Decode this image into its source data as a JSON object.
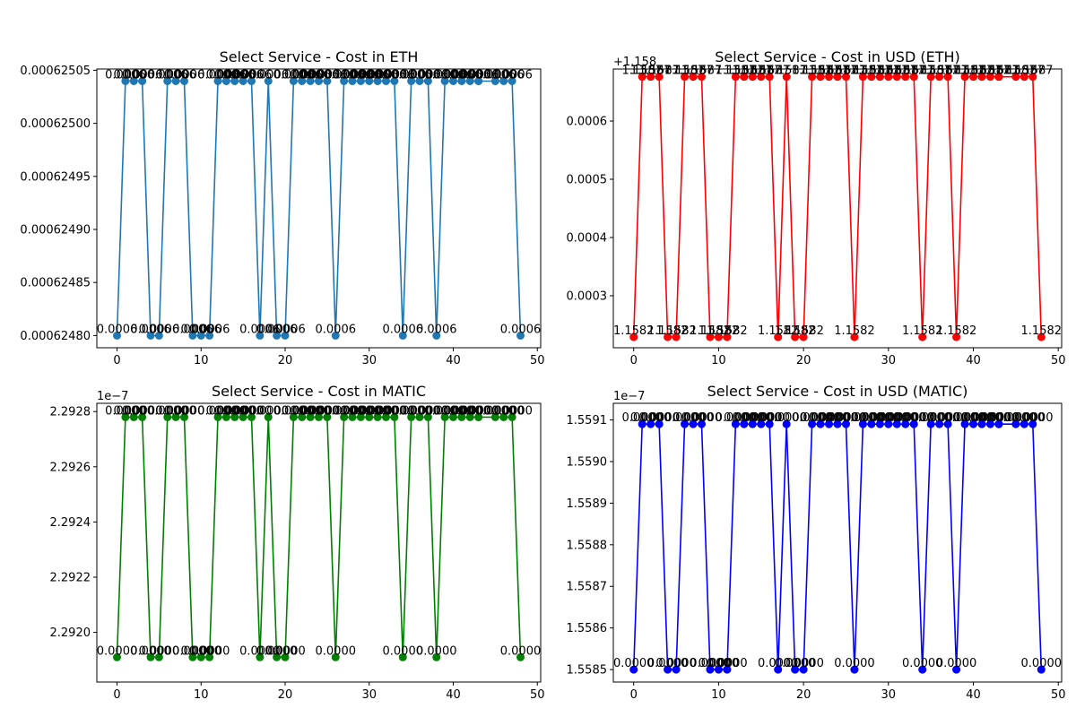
{
  "chart_data": [
    {
      "type": "line",
      "title": "Select Service - Cost in ETH",
      "color": "#1f77b4",
      "offset_text": "",
      "xlim": [
        -2.4,
        50.4
      ],
      "ylim": [
        0.0006247885,
        0.0006250512
      ],
      "xticks": [
        0,
        10,
        20,
        30,
        40,
        50
      ],
      "xtick_labels": [
        "0",
        "10",
        "20",
        "30",
        "40",
        "50"
      ],
      "yticks": [
        0.0006248,
        0.00062485,
        0.0006249,
        0.00062495,
        0.000625,
        0.00062505
      ],
      "ytick_labels": [
        "0.00062480",
        "0.00062485",
        "0.00062490",
        "0.00062495",
        "0.00062500",
        "0.00062505"
      ],
      "x": [
        0,
        1,
        2,
        3,
        4,
        5,
        6,
        7,
        8,
        9,
        10,
        11,
        12,
        13,
        14,
        15,
        16,
        17,
        18,
        19,
        20,
        21,
        22,
        23,
        24,
        25,
        26,
        27,
        28,
        29,
        30,
        31,
        32,
        33,
        34,
        35,
        36,
        37,
        38,
        39,
        40,
        41,
        42,
        43,
        43,
        45,
        46,
        47,
        48
      ],
      "y": [
        0.0006248,
        0.0006250398,
        0.0006250398,
        0.0006250398,
        0.0006248,
        0.0006248,
        0.0006250398,
        0.0006250398,
        0.0006250398,
        0.0006248,
        0.0006248,
        0.0006248,
        0.0006250398,
        0.0006250398,
        0.0006250398,
        0.0006250398,
        0.0006250398,
        0.0006248,
        0.0006250398,
        0.0006248,
        0.0006248,
        0.0006250398,
        0.0006250398,
        0.0006250398,
        0.0006250398,
        0.0006250398,
        0.0006248,
        0.0006250398,
        0.0006250398,
        0.0006250398,
        0.0006250398,
        0.0006250398,
        0.0006250398,
        0.0006250398,
        0.0006248,
        0.0006250398,
        0.0006250398,
        0.0006250398,
        0.0006248,
        0.0006250398,
        0.0006250398,
        0.0006250398,
        0.0006250398,
        0.0006250398,
        0.0006250398,
        0.0006250398,
        0.0006250398,
        0.0006250398,
        0.0006248
      ],
      "labels": [
        "0.0006",
        "0.0006",
        "0.0006",
        "0.0006",
        "0.0006",
        "0.0006",
        "0.0006",
        "0.0006",
        "0.0006",
        "0.0006",
        "0.0006",
        "0.0006",
        "0.0006",
        "0.0006",
        "0.0006",
        "0.0006",
        "0.0006",
        "0.0006",
        "0.0006",
        "0.0006",
        "0.0006",
        "0.0006",
        "0.0006",
        "0.0006",
        "0.0006",
        "0.0006",
        "0.0006",
        "0.0006",
        "0.0006",
        "0.0006",
        "0.0006",
        "0.0006",
        "0.0006",
        "0.0006",
        "0.0006",
        "0.0006",
        "0.0006",
        "0.0006",
        "0.0006",
        "0.0006",
        "0.0006",
        "0.0006",
        "0.0006",
        "0.0006",
        "0.0006",
        "0.0006",
        "0.0006",
        "0.0006",
        "0.0006"
      ]
    },
    {
      "type": "line",
      "title": "Select Service - Cost in USD (ETH)",
      "color": "#ff0000",
      "offset_text": "+1.158",
      "xlim": [
        -2.4,
        50.4
      ],
      "ylim": [
        0.0002107,
        0.0006893
      ],
      "xticks": [
        0,
        10,
        20,
        30,
        40,
        50
      ],
      "xtick_labels": [
        "0",
        "10",
        "20",
        "30",
        "40",
        "50"
      ],
      "yticks": [
        0.0003,
        0.0004,
        0.0005,
        0.0006
      ],
      "ytick_labels": [
        "0.0003",
        "0.0004",
        "0.0005",
        "0.0006"
      ],
      "x": [
        0,
        1,
        2,
        3,
        4,
        5,
        6,
        7,
        8,
        9,
        10,
        11,
        12,
        13,
        14,
        15,
        16,
        17,
        18,
        19,
        20,
        21,
        22,
        23,
        24,
        25,
        26,
        27,
        28,
        29,
        30,
        31,
        32,
        33,
        34,
        35,
        36,
        37,
        38,
        39,
        40,
        41,
        42,
        43,
        43,
        45,
        46,
        47,
        48
      ],
      "y": [
        0.000229,
        0.000676,
        0.000676,
        0.000676,
        0.000229,
        0.000229,
        0.000676,
        0.000676,
        0.000676,
        0.000229,
        0.000229,
        0.000229,
        0.000676,
        0.000676,
        0.000676,
        0.000676,
        0.000676,
        0.000229,
        0.000676,
        0.000229,
        0.000229,
        0.000676,
        0.000676,
        0.000676,
        0.000676,
        0.000676,
        0.000229,
        0.000676,
        0.000676,
        0.000676,
        0.000676,
        0.000676,
        0.000676,
        0.000676,
        0.000229,
        0.000676,
        0.000676,
        0.000676,
        0.000229,
        0.000676,
        0.000676,
        0.000676,
        0.000676,
        0.000676,
        0.000676,
        0.000676,
        0.000676,
        0.000676,
        0.000229
      ],
      "labels": [
        "1.1582",
        "1.1587",
        "1.1587",
        "1.1587",
        "1.1582",
        "1.1582",
        "1.1587",
        "1.1587",
        "1.1587",
        "1.1582",
        "1.1582",
        "1.1582",
        "1.1587",
        "1.1587",
        "1.1587",
        "1.1587",
        "1.1587",
        "1.1582",
        "1.1587",
        "1.1582",
        "1.1582",
        "1.1587",
        "1.1587",
        "1.1587",
        "1.1587",
        "1.1587",
        "1.1582",
        "1.1587",
        "1.1587",
        "1.1587",
        "1.1587",
        "1.1587",
        "1.1587",
        "1.1587",
        "1.1582",
        "1.1587",
        "1.1587",
        "1.1587",
        "1.1582",
        "1.1587",
        "1.1587",
        "1.1587",
        "1.1587",
        "1.1587",
        "1.1587",
        "1.1587",
        "1.1587",
        "1.1587",
        "1.1582"
      ]
    },
    {
      "type": "line",
      "title": "Select Service - Cost in MATIC",
      "color": "#008000",
      "offset_text": "1e−7",
      "xlim": [
        -2.4,
        50.4
      ],
      "ylim": [
        2.29182,
        2.29283
      ],
      "xticks": [
        0,
        10,
        20,
        30,
        40,
        50
      ],
      "xtick_labels": [
        "0",
        "10",
        "20",
        "30",
        "40",
        "50"
      ],
      "yticks": [
        2.292,
        2.2922,
        2.2924,
        2.2926,
        2.2928
      ],
      "ytick_labels": [
        "2.2920",
        "2.2922",
        "2.2924",
        "2.2926",
        "2.2928"
      ],
      "x": [
        0,
        1,
        2,
        3,
        4,
        5,
        6,
        7,
        8,
        9,
        10,
        11,
        12,
        13,
        14,
        15,
        16,
        17,
        18,
        19,
        20,
        21,
        22,
        23,
        24,
        25,
        26,
        27,
        28,
        29,
        30,
        31,
        32,
        33,
        34,
        35,
        36,
        37,
        38,
        39,
        40,
        41,
        42,
        43,
        43,
        45,
        46,
        47,
        48
      ],
      "y": [
        2.29191,
        2.29278,
        2.29278,
        2.29278,
        2.29191,
        2.29191,
        2.29278,
        2.29278,
        2.29278,
        2.29191,
        2.29191,
        2.29191,
        2.29278,
        2.29278,
        2.29278,
        2.29278,
        2.29278,
        2.29191,
        2.29278,
        2.29191,
        2.29191,
        2.29278,
        2.29278,
        2.29278,
        2.29278,
        2.29278,
        2.29191,
        2.29278,
        2.29278,
        2.29278,
        2.29278,
        2.29278,
        2.29278,
        2.29278,
        2.29191,
        2.29278,
        2.29278,
        2.29278,
        2.29191,
        2.29278,
        2.29278,
        2.29278,
        2.29278,
        2.29278,
        2.29278,
        2.29278,
        2.29278,
        2.29278,
        2.29191
      ],
      "labels": [
        "0.0000",
        "0.0000",
        "0.0000",
        "0.0000",
        "0.0000",
        "0.0000",
        "0.0000",
        "0.0000",
        "0.0000",
        "0.0000",
        "0.0000",
        "0.0000",
        "0.0000",
        "0.0000",
        "0.0000",
        "0.0000",
        "0.0000",
        "0.0000",
        "0.0000",
        "0.0000",
        "0.0000",
        "0.0000",
        "0.0000",
        "0.0000",
        "0.0000",
        "0.0000",
        "0.0000",
        "0.0000",
        "0.0000",
        "0.0000",
        "0.0000",
        "0.0000",
        "0.0000",
        "0.0000",
        "0.0000",
        "0.0000",
        "0.0000",
        "0.0000",
        "0.0000",
        "0.0000",
        "0.0000",
        "0.0000",
        "0.0000",
        "0.0000",
        "0.0000",
        "0.0000",
        "0.0000",
        "0.0000",
        "0.0000"
      ]
    },
    {
      "type": "line",
      "title": "Select Service - Cost in USD (MATIC)",
      "color": "#0000ff",
      "offset_text": "1e−7",
      "xlim": [
        -2.4,
        50.4
      ],
      "ylim": [
        1.55847,
        1.55914
      ],
      "xticks": [
        0,
        10,
        20,
        30,
        40,
        50
      ],
      "xtick_labels": [
        "0",
        "10",
        "20",
        "30",
        "40",
        "50"
      ],
      "yticks": [
        1.5585,
        1.5586,
        1.5587,
        1.5588,
        1.5589,
        1.559,
        1.5591
      ],
      "ytick_labels": [
        "1.5585",
        "1.5586",
        "1.5587",
        "1.5588",
        "1.5589",
        "1.5590",
        "1.5591"
      ],
      "x": [
        0,
        1,
        2,
        3,
        4,
        5,
        6,
        7,
        8,
        9,
        10,
        11,
        12,
        13,
        14,
        15,
        16,
        17,
        18,
        19,
        20,
        21,
        22,
        23,
        24,
        25,
        26,
        27,
        28,
        29,
        30,
        31,
        32,
        33,
        34,
        35,
        36,
        37,
        38,
        39,
        40,
        41,
        42,
        43,
        43,
        45,
        46,
        47,
        48
      ],
      "y": [
        1.5585,
        1.55909,
        1.55909,
        1.55909,
        1.5585,
        1.5585,
        1.55909,
        1.55909,
        1.55909,
        1.5585,
        1.5585,
        1.5585,
        1.55909,
        1.55909,
        1.55909,
        1.55909,
        1.55909,
        1.5585,
        1.55909,
        1.5585,
        1.5585,
        1.55909,
        1.55909,
        1.55909,
        1.55909,
        1.55909,
        1.5585,
        1.55909,
        1.55909,
        1.55909,
        1.55909,
        1.55909,
        1.55909,
        1.55909,
        1.5585,
        1.55909,
        1.55909,
        1.55909,
        1.5585,
        1.55909,
        1.55909,
        1.55909,
        1.55909,
        1.55909,
        1.55909,
        1.55909,
        1.55909,
        1.55909,
        1.5585
      ],
      "labels": [
        "0.0000",
        "0.0000",
        "0.0000",
        "0.0000",
        "0.0000",
        "0.0000",
        "0.0000",
        "0.0000",
        "0.0000",
        "0.0000",
        "0.0000",
        "0.0000",
        "0.0000",
        "0.0000",
        "0.0000",
        "0.0000",
        "0.0000",
        "0.0000",
        "0.0000",
        "0.0000",
        "0.0000",
        "0.0000",
        "0.0000",
        "0.0000",
        "0.0000",
        "0.0000",
        "0.0000",
        "0.0000",
        "0.0000",
        "0.0000",
        "0.0000",
        "0.0000",
        "0.0000",
        "0.0000",
        "0.0000",
        "0.0000",
        "0.0000",
        "0.0000",
        "0.0000",
        "0.0000",
        "0.0000",
        "0.0000",
        "0.0000",
        "0.0000",
        "0.0000",
        "0.0000",
        "0.0000",
        "0.0000",
        "0.0000"
      ]
    }
  ]
}
